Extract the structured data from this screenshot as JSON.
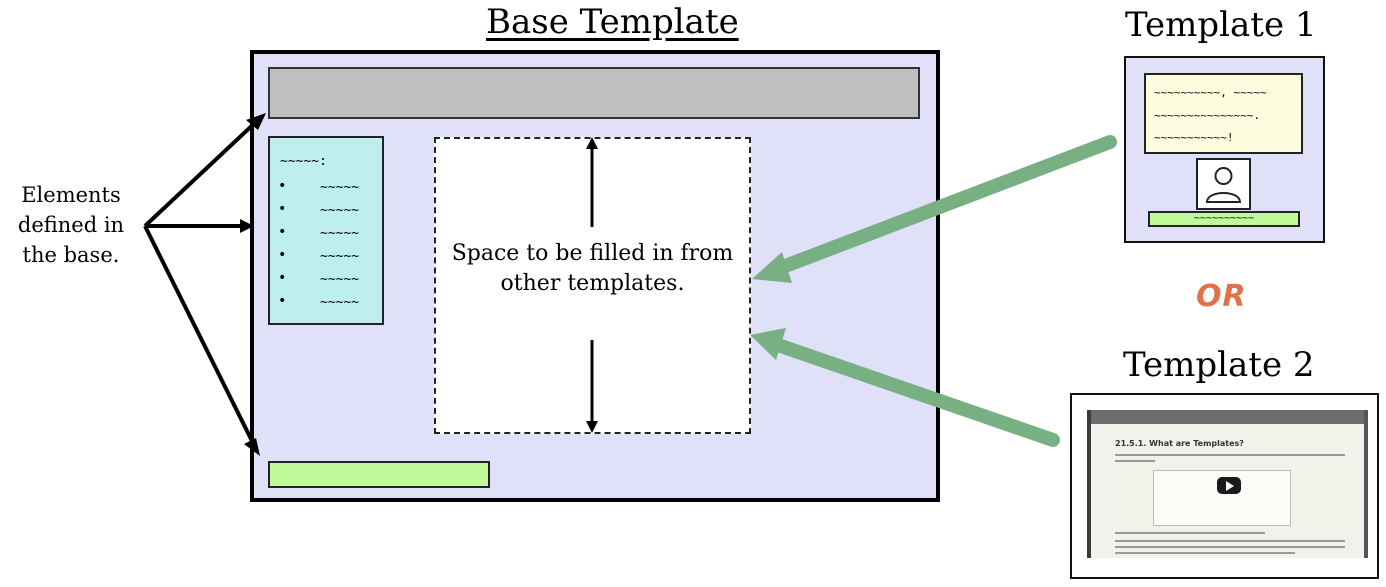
{
  "titles": {
    "base": "Base Template",
    "template1": "Template 1",
    "template2": "Template 2",
    "or": "OR"
  },
  "base": {
    "sidebar_heading": "~~~~~:",
    "sidebar_items": [
      "~~~~~",
      "~~~~~",
      "~~~~~",
      "~~~~~",
      "~~~~~",
      "~~~~~"
    ],
    "space_text": "Space to be filled in from other templates."
  },
  "left_label": "Elements defined in the base.",
  "template1": {
    "lines": [
      "~~~~~~~~~~, ~~~~~",
      "~~~~~~~~~~~~~~~.",
      "~~~~~~~~~~~!"
    ],
    "footer": "~~~~~~~~~~"
  },
  "template2": {
    "heading": "21.5.1. What are Templates?"
  },
  "colors": {
    "frame_fill": "#e0e0f8",
    "header": "#bfbfbf",
    "sidebar": "#bfeeee",
    "footer": "#bff99a",
    "note": "#fdfde0",
    "arrow_green": "#79b083",
    "or_orange": "#e2704a"
  },
  "icons": [
    "user-avatar-icon",
    "play-icon"
  ]
}
